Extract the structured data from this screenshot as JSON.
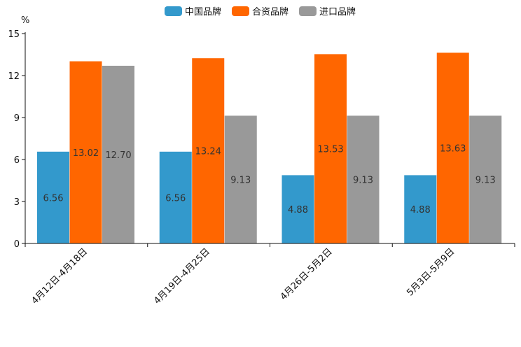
{
  "chart_data": {
    "type": "bar",
    "title": "",
    "ylabel": "%",
    "xlabel": "",
    "ylim": [
      0,
      15
    ],
    "yticks": [
      0,
      3,
      6,
      9,
      12,
      15
    ],
    "categories": [
      "4月12日-4月18日",
      "4月19日-4月25日",
      "4月26日-5月2日",
      "5月3日-5月9日"
    ],
    "series": [
      {
        "name": "中国品牌",
        "color": "#3399CC",
        "values": [
          6.56,
          6.56,
          4.88,
          4.88
        ],
        "labels": [
          "6.56",
          "6.56",
          "4.88",
          "4.88"
        ]
      },
      {
        "name": "合资品牌",
        "color": "#FF6600",
        "values": [
          13.02,
          13.24,
          13.53,
          13.63
        ],
        "labels": [
          "13.02",
          "13.24",
          "13.53",
          "13.63"
        ]
      },
      {
        "name": "进口品牌",
        "color": "#999999",
        "values": [
          12.7,
          9.13,
          9.13,
          9.13
        ],
        "labels": [
          "12.70",
          "9.13",
          "9.13",
          "9.13"
        ]
      }
    ],
    "legend_position": "top-center",
    "grid": false
  }
}
